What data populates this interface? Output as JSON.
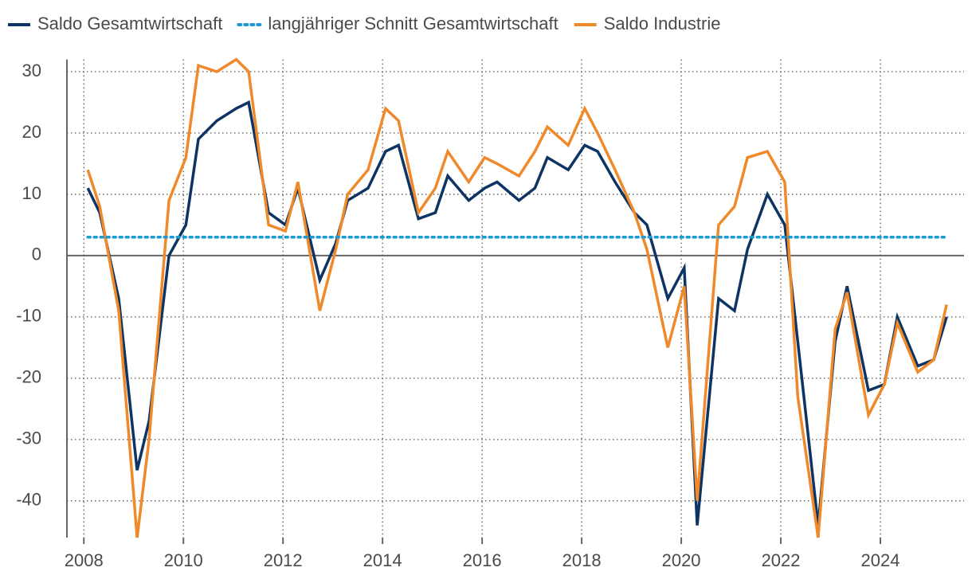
{
  "chart_data": {
    "type": "line",
    "x": [
      2008.08,
      2008.32,
      2008.7,
      2009.07,
      2009.31,
      2009.71,
      2010.05,
      2010.3,
      2010.67,
      2011.06,
      2011.31,
      2011.71,
      2012.05,
      2012.3,
      2012.74,
      2013.06,
      2013.3,
      2013.71,
      2014.06,
      2014.32,
      2014.72,
      2015.06,
      2015.31,
      2015.73,
      2016.05,
      2016.3,
      2016.74,
      2017.06,
      2017.31,
      2017.73,
      2018.06,
      2018.32,
      2018.67,
      2019.06,
      2019.31,
      2019.73,
      2020.06,
      2020.32,
      2020.75,
      2021.07,
      2021.33,
      2021.73,
      2022.08,
      2022.34,
      2022.75,
      2023.09,
      2023.33,
      2023.76,
      2024.08,
      2024.34,
      2024.75,
      2025.07,
      2025.33
    ],
    "series": [
      {
        "name": "Saldo Gesamtwirtschaft",
        "color": "#0d3463",
        "style": "solid",
        "values": [
          11,
          7,
          -7,
          -35,
          -27,
          0,
          5,
          19,
          22,
          24,
          25,
          7,
          5,
          11,
          -4,
          2,
          9,
          11,
          17,
          18,
          6,
          7,
          13,
          9,
          11,
          12,
          9,
          11,
          16,
          14,
          18,
          17,
          12,
          7,
          5,
          -7,
          -2,
          -44,
          -7,
          -9,
          1,
          10,
          5,
          -14,
          -44,
          -14,
          -5,
          -22,
          -21,
          -10,
          -18,
          -17,
          -10
        ]
      },
      {
        "name": "langjähriger Schnitt Gesamtwirtschaft",
        "color": "#1d9ad6",
        "style": "dotted",
        "values": [
          3,
          3,
          3,
          3,
          3,
          3,
          3,
          3,
          3,
          3,
          3,
          3,
          3,
          3,
          3,
          3,
          3,
          3,
          3,
          3,
          3,
          3,
          3,
          3,
          3,
          3,
          3,
          3,
          3,
          3,
          3,
          3,
          3,
          3,
          3,
          3,
          3,
          3,
          3,
          3,
          3,
          3,
          3,
          3,
          3,
          3,
          3,
          3,
          3,
          3,
          3,
          3,
          3
        ]
      },
      {
        "name": "Saldo Industrie",
        "color": "#f0892a",
        "style": "solid",
        "values": [
          14,
          8,
          -9,
          -46,
          -30,
          9,
          16,
          31,
          30,
          32,
          30,
          5,
          4,
          12,
          -9,
          1,
          10,
          14,
          24,
          22,
          7,
          11,
          17,
          12,
          16,
          15,
          13,
          17,
          21,
          18,
          24,
          20,
          14,
          7,
          1,
          -15,
          -5,
          -40,
          5,
          8,
          16,
          17,
          12,
          -23,
          -46,
          -12,
          -6,
          -26,
          -21,
          -11,
          -19,
          -17,
          -8
        ]
      }
    ],
    "xlim": [
      2007.66,
      2025.68
    ],
    "xticks": [
      2008,
      2010,
      2012,
      2014,
      2016,
      2018,
      2020,
      2022,
      2024
    ],
    "ylim": [
      -46,
      32
    ],
    "yticks": [
      -40,
      -30,
      -20,
      -10,
      0,
      10,
      20,
      30
    ],
    "grid": true,
    "legend": "top"
  }
}
